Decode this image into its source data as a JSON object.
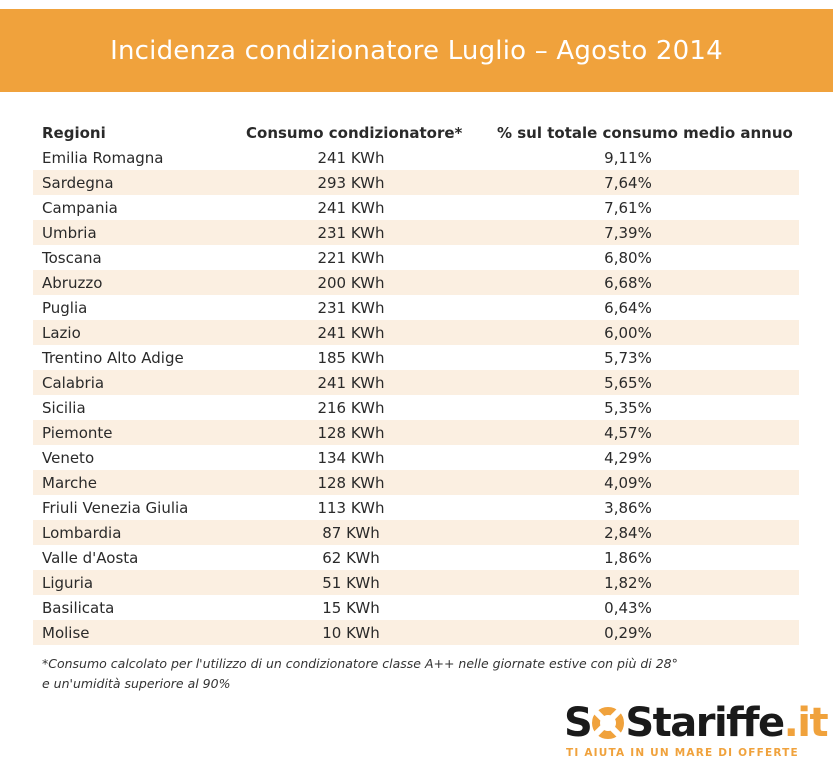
{
  "title": "Incidenza condizionatore Luglio – Agosto 2014",
  "chart_data": {
    "type": "table",
    "title": "Incidenza condizionatore Luglio – Agosto 2014",
    "columns": [
      "Regioni",
      "Consumo condizionatore*",
      "% sul totale consumo medio annuo"
    ],
    "rows": [
      [
        "Emilia Romagna",
        "241 KWh",
        "9,11%"
      ],
      [
        "Sardegna",
        "293 KWh",
        "7,64%"
      ],
      [
        "Campania",
        "241 KWh",
        "7,61%"
      ],
      [
        "Umbria",
        "231 KWh",
        "7,39%"
      ],
      [
        "Toscana",
        "221 KWh",
        "6,80%"
      ],
      [
        "Abruzzo",
        "200 KWh",
        "6,68%"
      ],
      [
        "Puglia",
        "231 KWh",
        "6,64%"
      ],
      [
        "Lazio",
        "241 KWh",
        "6,00%"
      ],
      [
        "Trentino Alto Adige",
        "185 KWh",
        "5,73%"
      ],
      [
        "Calabria",
        "241 KWh",
        "5,65%"
      ],
      [
        "Sicilia",
        "216 KWh",
        "5,35%"
      ],
      [
        "Piemonte",
        "128 KWh",
        "4,57%"
      ],
      [
        "Veneto",
        "134 KWh",
        "4,29%"
      ],
      [
        "Marche",
        "128 KWh",
        "4,09%"
      ],
      [
        "Friuli Venezia Giulia",
        "113 KWh",
        "3,86%"
      ],
      [
        "Lombardia",
        "87 KWh",
        "2,84%"
      ],
      [
        "Valle d'Aosta",
        "62 KWh",
        "1,86%"
      ],
      [
        "Liguria",
        "51 KWh",
        "1,82%"
      ],
      [
        "Basilicata",
        "15 KWh",
        "0,43%"
      ],
      [
        "Molise",
        "10 KWh",
        "0,29%"
      ]
    ]
  },
  "footnote": {
    "line1": "*Consumo calcolato per l'utilizzo di un condizionatore classe A++ nelle giornate estive con più di 28°",
    "line2": "e un'umidità superiore al 90%"
  },
  "logo": {
    "prefix": "S",
    "suffix": "Stariffe",
    "tld": ".it",
    "tagline": "TI AIUTA IN UN MARE DI OFFERTE"
  },
  "colors": {
    "accent": "#f0a23c",
    "row_stripe": "#fbefe1"
  }
}
